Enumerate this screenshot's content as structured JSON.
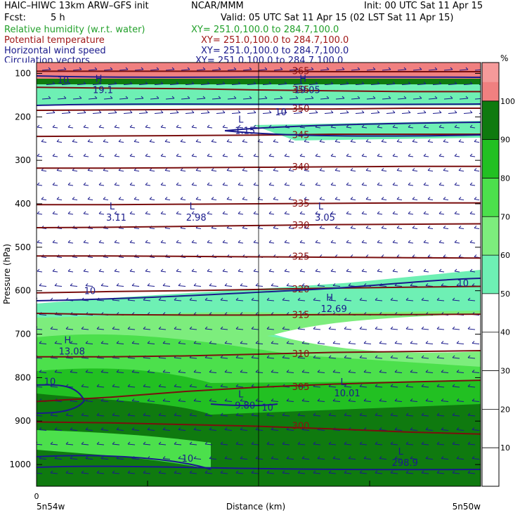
{
  "header": {
    "model": "HAIC–HIWC 13km ARW–GFS init",
    "org": "NCAR/MMM",
    "init": "Init: 00 UTC Sat 11 Apr 15",
    "fcst_label": "Fcst:",
    "fcst_value": "5 h",
    "valid": "Valid: 05 UTC Sat 11 Apr 15 (02 LST Sat 11 Apr 15)",
    "fields": [
      {
        "name": "Relative humidity (w.r.t. water)",
        "xy": "XY= 251.0,100.0 to 284.7,100.0",
        "color": "#22a02a"
      },
      {
        "name": "Potential temperature",
        "xy": "XY= 251.0,100.0 to 284.7,100.0",
        "color": "#a01818"
      },
      {
        "name": "Horizontal wind speed",
        "xy": "XY= 251.0,100.0 to 284.7,100.0",
        "color": "#1a1a8c"
      },
      {
        "name": "Circulation vectors",
        "xy": "XY= 251.0,100.0 to 284.7,100.0",
        "color": "#1a1a8c"
      }
    ]
  },
  "colorbar": {
    "unit": "%",
    "ticks": [
      "10",
      "20",
      "30",
      "40",
      "50",
      "60",
      "70",
      "80",
      "90",
      "100"
    ],
    "bins": [
      {
        "from": 0,
        "to": 50,
        "color": "#ffffff"
      },
      {
        "from": 50,
        "to": 60,
        "color": "#6ef0b4"
      },
      {
        "from": 60,
        "to": 70,
        "color": "#7ded7d"
      },
      {
        "from": 70,
        "to": 80,
        "color": "#4ce04c"
      },
      {
        "from": 80,
        "to": 90,
        "color": "#22c022"
      },
      {
        "from": 90,
        "to": 100,
        "color": "#0f7a0f"
      },
      {
        "from": 100,
        "to": 105,
        "color": "#f08080"
      },
      {
        "from": 105,
        "to": 110,
        "color": "#f59a9a"
      }
    ]
  },
  "chart_data": {
    "type": "cross-section",
    "xlabel": "Distance (km)",
    "ylabel": "Pressure (hPa)",
    "x_start_tick": "0",
    "x_left_label": "5n54w",
    "x_right_label": "5n50w",
    "y_ticks": [
      100,
      200,
      300,
      400,
      500,
      600,
      700,
      800,
      900,
      1000
    ],
    "ylim": [
      1050,
      75
    ],
    "x_vertical_lines": [
      0.5
    ],
    "theta_contours": [
      {
        "label": "300",
        "p": [
          902,
          904,
          908,
          912,
          918,
          925,
          930
        ]
      },
      {
        "label": "305",
        "p": [
          855,
          845,
          832,
          822,
          815,
          810,
          806
        ]
      },
      {
        "label": "310",
        "p": [
          752,
          752,
          750,
          746,
          742,
          740,
          738
        ]
      },
      {
        "label": "315",
        "p": [
          652,
          655,
          656,
          656,
          655,
          655,
          654
        ]
      },
      {
        "label": "320",
        "p": [
          605,
          602,
          600,
          597,
          594,
          592,
          590
        ]
      },
      {
        "label": "325",
        "p": [
          520,
          520,
          521,
          522,
          523,
          524,
          525
        ]
      },
      {
        "label": "330",
        "p": [
          455,
          454,
          452,
          450,
          448,
          447,
          446
        ]
      },
      {
        "label": "335",
        "p": [
          402,
          402,
          401,
          400,
          399,
          398,
          398
        ]
      },
      {
        "label": "340",
        "p": [
          318,
          318,
          317,
          316,
          315,
          314,
          314
        ]
      },
      {
        "label": "345",
        "p": [
          245,
          244,
          243,
          242,
          240,
          240,
          240
        ]
      },
      {
        "label": "350",
        "p": [
          185,
          184,
          183,
          182,
          182,
          180,
          180
        ]
      },
      {
        "label": "355",
        "p": [
          132,
          134,
          135,
          138,
          140,
          142,
          142
        ]
      },
      {
        "label": "365",
        "p": [
          95,
          95,
          95,
          95,
          96,
          96,
          96
        ]
      }
    ],
    "wind_labels": [
      {
        "text": "10",
        "x": 0.06,
        "p": 115
      },
      {
        "text": "10",
        "x": 0.55,
        "p": 188
      },
      {
        "text": "10",
        "x": 0.12,
        "p": 600
      },
      {
        "text": "10",
        "x": 0.96,
        "p": 582
      },
      {
        "text": "10",
        "x": 0.03,
        "p": 808
      },
      {
        "text": "10",
        "x": 0.52,
        "p": 868
      },
      {
        "text": "10",
        "x": 0.34,
        "p": 985
      }
    ],
    "extrema": [
      {
        "type": "H",
        "value": "19.1",
        "x": 0.14,
        "p": 132
      },
      {
        "type": "H",
        "value": "19.05",
        "x": 0.6,
        "p": 132
      },
      {
        "type": "L",
        "value": "1.15",
        "x": 0.46,
        "p": 226
      },
      {
        "type": "L",
        "value": "3.11",
        "x": 0.17,
        "p": 426
      },
      {
        "type": "L",
        "value": "2.98",
        "x": 0.35,
        "p": 426
      },
      {
        "type": "L",
        "value": "3.05",
        "x": 0.64,
        "p": 426
      },
      {
        "type": "H",
        "value": "12.69",
        "x": 0.66,
        "p": 636
      },
      {
        "type": "H",
        "value": "13.08",
        "x": 0.07,
        "p": 734
      },
      {
        "type": "L",
        "value": "10.01",
        "x": 0.69,
        "p": 830
      },
      {
        "type": "L",
        "value": "9.80",
        "x": 0.46,
        "p": 858
      },
      {
        "type": "L",
        "value": "298.9",
        "x": 0.82,
        "p": 990
      }
    ]
  }
}
